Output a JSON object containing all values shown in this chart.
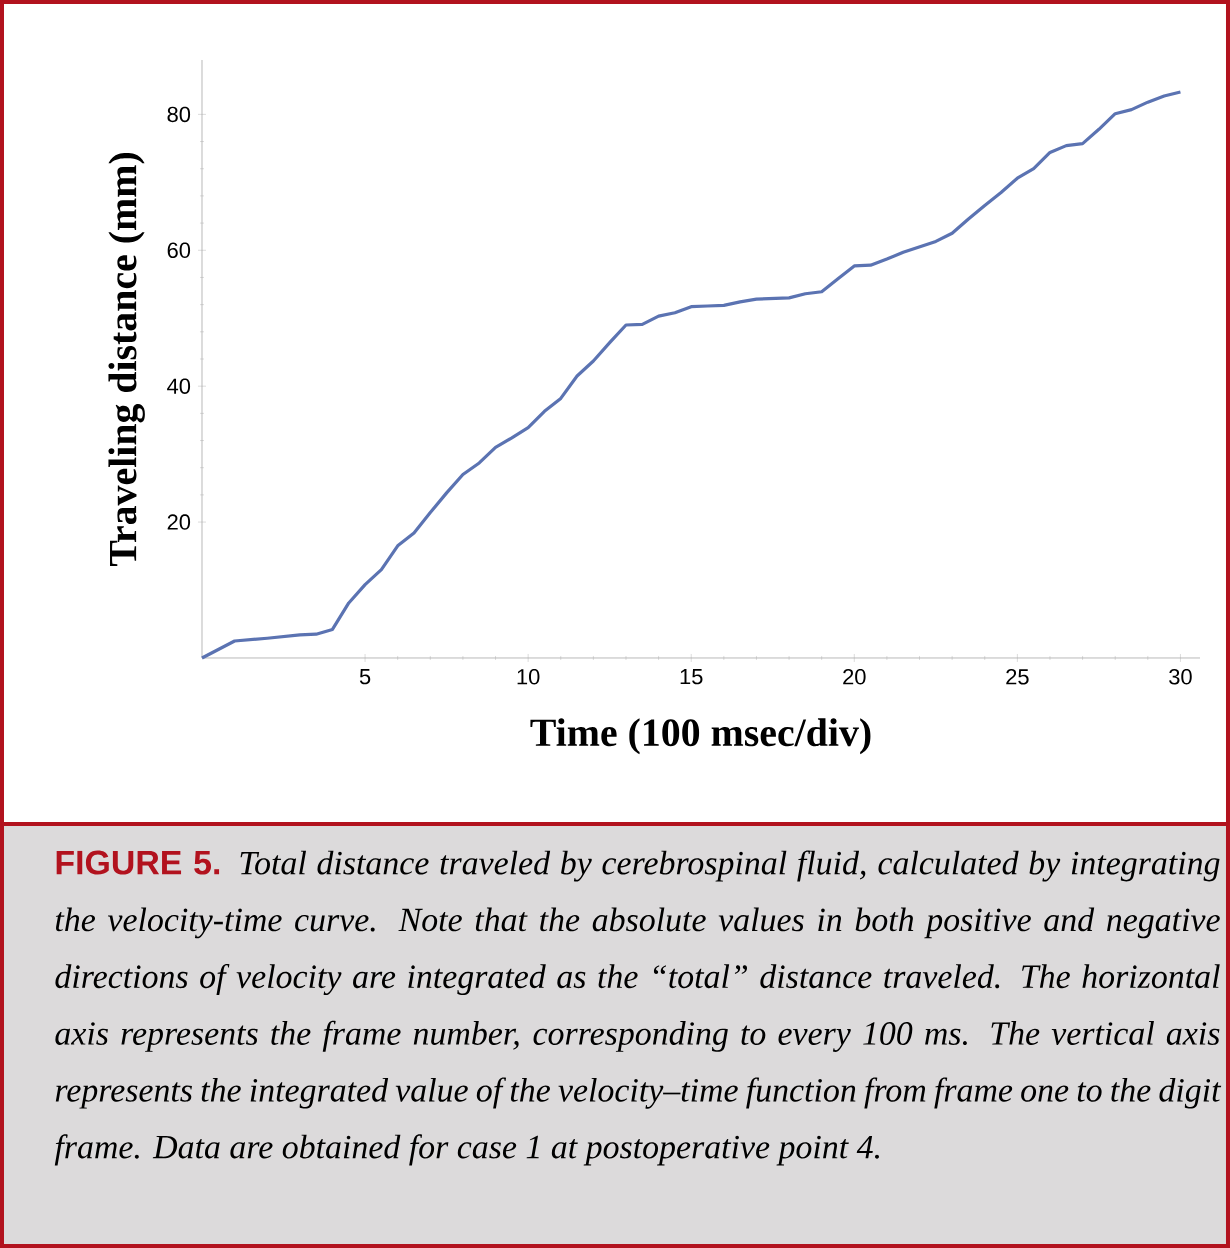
{
  "chart_data": {
    "type": "line",
    "xlabel": "Time (100 msec/div)",
    "ylabel": "Traveling distance (mm)",
    "x": [
      0,
      1,
      2,
      3,
      3.5,
      4,
      4.5,
      5,
      5.5,
      6,
      6.5,
      7,
      7.5,
      8,
      8.5,
      9,
      9.5,
      10,
      10.5,
      11,
      11.5,
      12,
      12.5,
      13,
      13.5,
      14,
      14.5,
      15,
      15.5,
      16,
      16.5,
      17,
      18,
      18.5,
      19,
      19.5,
      20,
      20.5,
      21,
      21.5,
      22,
      22.5,
      23,
      23.5,
      24,
      24.5,
      25,
      25.5,
      26,
      26.5,
      27,
      27.5,
      28,
      28.5,
      29,
      29.5,
      30
    ],
    "series": [
      {
        "color": "#5b73b2",
        "values": [
          0,
          2.5,
          2.9,
          3.4,
          3.5,
          4.2,
          8.1,
          10.8,
          13,
          16.5,
          18.4,
          21.4,
          24.3,
          27,
          28.7,
          31,
          32.4,
          33.9,
          36.3,
          38.2,
          41.5,
          43.7,
          46.4,
          49,
          49.1,
          50.3,
          50.8,
          51.7,
          51.8,
          51.9,
          52.4,
          52.8,
          53,
          53.6,
          53.9,
          55.8,
          57.7,
          57.8,
          58.7,
          59.7,
          60.5,
          61.3,
          62.5,
          64.6,
          66.6,
          68.5,
          70.6,
          72,
          74.4,
          75.4,
          75.7,
          77.8,
          80.1,
          80.7,
          81.8,
          82.7,
          83.3
        ]
      }
    ],
    "xlim": [
      0,
      30.6
    ],
    "ylim": [
      0,
      88
    ],
    "xticks": [
      5,
      10,
      15,
      20,
      25,
      30
    ],
    "yticks": [
      20,
      40,
      60,
      80
    ],
    "grid": false,
    "marker": "none",
    "line_style": "solid",
    "annotations": [
      "FIGURE 5.",
      "Total distance traveled by cerebrospinal fluid, calculated by integrating the velocity-time curve. Note that the absolute values in both positive and negative directions of velocity are integrated as the “total” distance traveled. The horizontal axis represents the frame number, corresponding to every 100 ms. The vertical axis represents the integrated value of the velocity–time function from frame one to the digit frame. Data are obtained for case 1 at postoperative point 4."
    ]
  }
}
